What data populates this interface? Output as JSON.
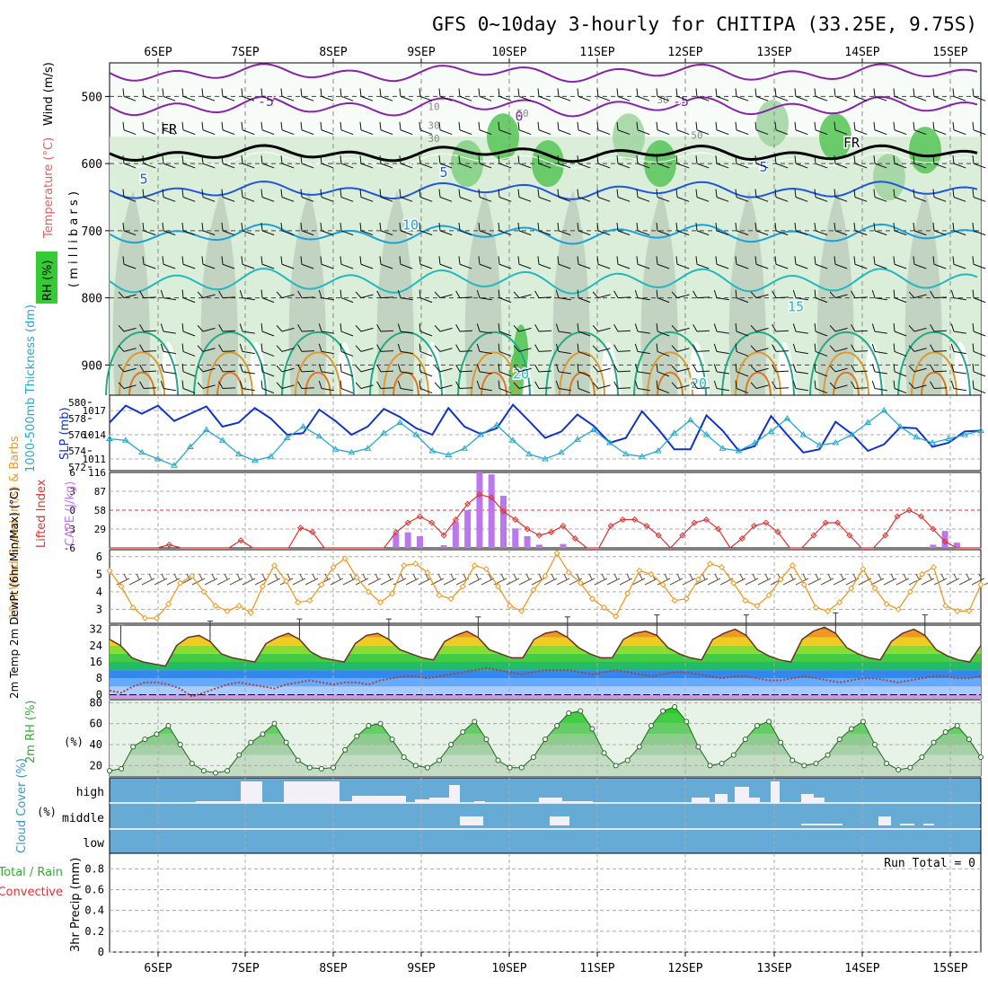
{
  "title": "GFS 0~10day 3-hourly for CHITIPA (33.25E, 9.75S)",
  "colors": {
    "wind": "#000000",
    "temperature": "#e06060",
    "rh": "#33cc33",
    "slp": "#1133cc",
    "thickness": "#22aacc",
    "lifted": "#e03030",
    "cape": "#bb77ee",
    "wind10": "#ee9922",
    "cloud": "#66aad6",
    "precip_total": "#33aa33",
    "precip_conv": "#e03030"
  },
  "chart_data": [
    {
      "id": "upper-air",
      "type": "heatmap",
      "ylabel_parts": [
        "Wind (m/s)",
        "Temperature (°C)",
        "RH (%)"
      ],
      "ylabel_units": "( m i l l i b a r s )",
      "yticks": [
        "500",
        "600",
        "700",
        "800",
        "900"
      ],
      "ylim": [
        450,
        945
      ],
      "dates": [
        "6SEP",
        "7SEP",
        "8SEP",
        "9SEP",
        "10SEP",
        "11SEP",
        "12SEP",
        "13SEP",
        "14SEP",
        "15SEP"
      ],
      "isotherm_labels": [
        "-5",
        "-5",
        "0",
        "FR",
        "FR",
        "5",
        "5",
        "5",
        "10",
        "15",
        "20",
        "20"
      ],
      "rh_labels": [
        "10",
        "30",
        "30",
        "30",
        "50",
        "50"
      ]
    },
    {
      "id": "slp-thickness",
      "type": "line",
      "ylabel_left": "1000-500mb Thickness (dm)",
      "ylabel_right": "SLP (mb)",
      "yticks_left": [
        "572",
        "574",
        "576",
        "578",
        "580"
      ],
      "yticks_right": [
        "1011",
        "1014",
        "1017"
      ],
      "series": [
        {
          "name": "SLP (mb)",
          "values": [
            1015.5,
            1017.6,
            1016.6,
            1017.6,
            1015.7,
            1016.6,
            1017.5,
            1015.0,
            1015.5,
            1017.3,
            1016.0,
            1014.0,
            1014.2,
            1017.1,
            1015.7,
            1014.0,
            1015.0,
            1017.2,
            1016.2,
            1014.8,
            1014.0,
            1017.3,
            1015.0,
            1014.1,
            1014.8,
            1017.7,
            1015.7,
            1013.6,
            1014.4,
            1016.5,
            1015.1,
            1013.0,
            1013.6,
            1016.9,
            1014.7,
            1012.2,
            1012.2,
            1016.4,
            1014.5,
            1012.0,
            1012.6,
            1016.3,
            1014.0,
            1011.8,
            1012.2,
            1015.6,
            1014.1,
            1012.0,
            1012.8,
            1014.9,
            1014.8,
            1012.5,
            1013.0,
            1014.4,
            1014.5
          ]
        },
        {
          "name": "1000-500mb Thickness (dm)",
          "values": [
            575.5,
            575.3,
            573.8,
            573.0,
            572.2,
            574.5,
            576.6,
            575.3,
            573.6,
            572.8,
            573.3,
            575.6,
            577.0,
            575.8,
            574.2,
            573.8,
            574.3,
            576.2,
            577.5,
            576.0,
            574.0,
            573.5,
            574.3,
            576.0,
            577.2,
            575.3,
            573.6,
            573.0,
            573.8,
            575.4,
            576.6,
            575.0,
            573.6,
            573.3,
            574.0,
            576.2,
            577.8,
            576.0,
            574.3,
            574.0,
            575.0,
            576.4,
            578.0,
            576.0,
            574.7,
            575.0,
            576.0,
            577.5,
            579.0,
            577.0,
            575.7,
            575.0,
            575.5,
            576.0,
            576.5
          ]
        }
      ]
    },
    {
      "id": "cape-lifted",
      "type": "bar",
      "ylabel_left": "Lifted Index",
      "ylabel_right": "CAPE (J/kg)",
      "yticks_left": [
        "6",
        "3",
        "0",
        "-3",
        "-6"
      ],
      "yticks_right": [
        "29",
        "58",
        "87",
        "116"
      ],
      "series": [
        {
          "name": "CAPE (J/kg)",
          "values": [
            0,
            0,
            0,
            0,
            0,
            0,
            0,
            0,
            0,
            0,
            0,
            0,
            0,
            0,
            0,
            0,
            0,
            0,
            0,
            0,
            0,
            0,
            0,
            0,
            22,
            24,
            18,
            0,
            4,
            40,
            58,
            116,
            113,
            80,
            30,
            18,
            5,
            0,
            6,
            0,
            0,
            0,
            0,
            0,
            0,
            0,
            0,
            0,
            0,
            0,
            0,
            0,
            0,
            0,
            0,
            0,
            0,
            0,
            0,
            0,
            0,
            0,
            0,
            0,
            0,
            0,
            0,
            0,
            0,
            5,
            26,
            8,
            0,
            0
          ]
        },
        {
          "name": "Lifted Index",
          "values": [
            6,
            6,
            6,
            6,
            6,
            5.5,
            6,
            6,
            6,
            6,
            6,
            4.8,
            6,
            6,
            6,
            6,
            2.8,
            3.5,
            6,
            6,
            6,
            6,
            6,
            6,
            3.5,
            2,
            1,
            2,
            4,
            1.5,
            -1,
            -2.5,
            -2,
            0.2,
            1.5,
            3,
            4,
            3.5,
            2.5,
            4.5,
            6,
            6,
            2.5,
            1.5,
            1.5,
            2.5,
            4,
            6,
            4,
            2,
            1.5,
            3,
            6,
            4.5,
            2.5,
            2,
            3.5,
            6,
            6,
            4,
            2,
            2,
            4,
            6,
            6,
            4,
            1,
            0,
            1,
            3,
            5,
            6,
            6,
            6
          ]
        }
      ]
    },
    {
      "id": "wind10",
      "type": "line",
      "ylabel": "10m Wind Speed (m/s) & Barbs",
      "yticks": [
        "3",
        "4",
        "5",
        "6"
      ],
      "series": [
        {
          "name": "10m Wind Speed (m/s)",
          "values": [
            5.2,
            4.3,
            3.1,
            2.5,
            2.5,
            3.3,
            4.5,
            4.9,
            4.0,
            3.2,
            2.9,
            3.2,
            2.8,
            4.3,
            5.5,
            4.6,
            3.4,
            3.5,
            4.4,
            5.4,
            5.9,
            4.8,
            4.0,
            3.4,
            3.9,
            5.5,
            5.6,
            5.1,
            3.8,
            3.6,
            4.3,
            5.5,
            5.3,
            4.3,
            3.2,
            2.9,
            4.1,
            4.9,
            6.2,
            5.1,
            4.5,
            3.6,
            3.1,
            2.6,
            3.9,
            5.2,
            5.0,
            4.4,
            3.5,
            3.6,
            4.7,
            5.6,
            5.4,
            4.5,
            3.5,
            3.2,
            3.8,
            4.7,
            5.5,
            4.4,
            3.1,
            2.9,
            3.4,
            4.2,
            5.3,
            4.2,
            3.3,
            3.0,
            4.0,
            5.0,
            5.4,
            3.2,
            2.9,
            2.9,
            4.4
          ]
        }
      ]
    },
    {
      "id": "temp2m",
      "type": "area",
      "ylabel": "2m Temp 2m DewPt (6hr Min/Max) (°C)",
      "yticks": [
        "0",
        "8",
        "16",
        "24",
        "32"
      ],
      "series": [
        {
          "name": "2m Temp (°C)",
          "values": [
            27,
            24,
            18,
            16,
            15,
            14,
            24,
            28,
            29,
            26,
            20,
            18,
            17,
            16,
            25,
            28,
            30,
            27,
            21,
            18,
            17,
            16,
            25,
            29,
            30,
            27,
            22,
            20,
            18,
            17,
            26,
            29,
            31,
            28,
            22,
            20,
            18,
            18,
            27,
            30,
            31,
            28,
            23,
            20,
            18,
            18,
            27,
            30,
            31,
            29,
            23,
            20,
            18,
            17,
            27,
            30,
            32,
            29,
            22,
            19,
            17,
            16,
            27,
            31,
            33,
            30,
            23,
            20,
            18,
            17,
            26,
            30,
            32,
            29,
            22,
            19,
            17,
            16,
            24
          ]
        },
        {
          "name": "2m DewPt (°C)",
          "values": [
            2,
            1,
            4,
            6,
            6,
            5,
            3,
            -1,
            1,
            3,
            5,
            6,
            5,
            4,
            3,
            5,
            6,
            7,
            6,
            5,
            6,
            6,
            5,
            7,
            8,
            9,
            9,
            8,
            9,
            10,
            11,
            12,
            13,
            12,
            11,
            10,
            11,
            12,
            12,
            12,
            11,
            10,
            11,
            12,
            11,
            10,
            9,
            10,
            11,
            11,
            10,
            9,
            8,
            9,
            9,
            8,
            7,
            7,
            8,
            9,
            8,
            7,
            6,
            7,
            8,
            8,
            7,
            6,
            7,
            8,
            9,
            9,
            8,
            8,
            9
          ]
        }
      ]
    },
    {
      "id": "rh2m",
      "type": "area",
      "ylabel": "2m RH (%)",
      "yticks": [
        "20",
        "40",
        "60",
        "80"
      ],
      "series": [
        {
          "name": "2m RH (%)",
          "values": [
            15,
            17,
            38,
            45,
            50,
            58,
            40,
            22,
            15,
            13,
            15,
            30,
            42,
            50,
            60,
            42,
            25,
            18,
            17,
            18,
            35,
            48,
            58,
            60,
            45,
            28,
            20,
            18,
            25,
            40,
            52,
            62,
            45,
            25,
            18,
            18,
            28,
            45,
            58,
            70,
            72,
            55,
            32,
            20,
            25,
            38,
            58,
            72,
            76,
            62,
            38,
            20,
            22,
            30,
            45,
            58,
            62,
            42,
            25,
            20,
            22,
            30,
            45,
            55,
            62,
            40,
            22,
            16,
            18,
            28,
            42,
            52,
            58,
            45,
            28
          ]
        }
      ]
    },
    {
      "id": "cloud",
      "type": "bar",
      "ylabel": "Cloud Cover (%)",
      "levels": [
        "high",
        "middle",
        "low"
      ]
    },
    {
      "id": "precip",
      "type": "bar",
      "ylabel_parts": [
        "Total / Rain",
        "Convective"
      ],
      "ylabel": "3hr Precip (mm)",
      "yticks": [
        "0",
        "0.2",
        "0.4",
        "0.6",
        "0.8"
      ],
      "run_total_label": "Run Total = 0",
      "dates": [
        "6SEP",
        "7SEP",
        "8SEP",
        "9SEP",
        "10SEP",
        "11SEP",
        "12SEP",
        "13SEP",
        "14SEP",
        "15SEP"
      ]
    }
  ]
}
